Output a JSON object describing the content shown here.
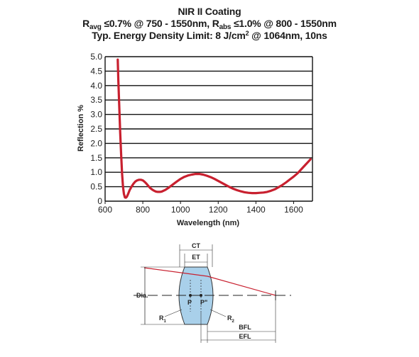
{
  "title": {
    "line1": "NIR II Coating",
    "line2": {
      "r1": "R",
      "r1_sub": "avg",
      "r1_text": " ≤0.7% @ 750 - 1550nm, ",
      "r2": "R",
      "r2_sub": "abs",
      "r2_text": " ≤1.0% @ 800 - 1550nm"
    },
    "line3": {
      "pre": "Typ. Energy Density Limit: 8 J/cm",
      "sup": "2",
      "post": " @ 1064nm, 10ns"
    }
  },
  "chart_data": {
    "type": "line",
    "xlabel": "Wavelength (nm)",
    "ylabel": "Reflection %",
    "xlim": [
      600,
      1700
    ],
    "ylim": [
      0,
      5.0
    ],
    "xticks": [
      600,
      800,
      1000,
      1200,
      1400,
      1600
    ],
    "yticks": [
      0,
      0.5,
      1.0,
      1.5,
      2.0,
      2.5,
      3.0,
      3.5,
      4.0,
      4.5,
      5.0
    ],
    "ytick_labels": [
      "0",
      "0.5",
      "1.0",
      "1.5",
      "2.0",
      "2.5",
      "3.0",
      "3.5",
      "4.0",
      "4.5",
      "5.0"
    ],
    "grid": "horizontal",
    "line_color": "#c8202f",
    "series": [
      {
        "x": [
          667,
          670,
          675,
          680,
          685,
          690,
          695,
          700,
          705,
          710,
          715,
          720,
          725,
          730,
          740,
          750,
          760,
          770,
          780,
          790,
          800,
          810,
          820,
          830,
          840,
          850,
          860,
          870,
          880,
          890,
          900,
          920,
          940,
          960,
          980,
          1000,
          1020,
          1040,
          1060,
          1080,
          1100,
          1120,
          1140,
          1160,
          1180,
          1200,
          1220,
          1240,
          1260,
          1280,
          1300,
          1320,
          1340,
          1360,
          1380,
          1400,
          1420,
          1440,
          1460,
          1480,
          1500,
          1520,
          1540,
          1560,
          1580,
          1600,
          1620,
          1640,
          1660,
          1680,
          1690
        ],
        "y": [
          4.9,
          4.2,
          3.3,
          2.4,
          1.6,
          0.95,
          0.5,
          0.25,
          0.13,
          0.12,
          0.15,
          0.22,
          0.3,
          0.38,
          0.5,
          0.6,
          0.68,
          0.72,
          0.74,
          0.74,
          0.72,
          0.67,
          0.6,
          0.52,
          0.45,
          0.4,
          0.36,
          0.33,
          0.32,
          0.32,
          0.33,
          0.39,
          0.48,
          0.58,
          0.68,
          0.77,
          0.84,
          0.89,
          0.92,
          0.94,
          0.94,
          0.92,
          0.88,
          0.83,
          0.77,
          0.7,
          0.63,
          0.56,
          0.49,
          0.43,
          0.38,
          0.34,
          0.31,
          0.29,
          0.28,
          0.28,
          0.29,
          0.3,
          0.32,
          0.36,
          0.41,
          0.48,
          0.56,
          0.65,
          0.75,
          0.85,
          0.96,
          1.1,
          1.24,
          1.38,
          1.45
        ]
      }
    ]
  },
  "diagram": {
    "labels": {
      "ct": "CT",
      "et": "ET",
      "dia": "Dia.",
      "p": "P",
      "p_prime": "P\"",
      "r1": "R",
      "r1_sub": "1",
      "r2": "R",
      "r2_sub": "2",
      "bfl": "BFL",
      "efl": "EFL"
    },
    "colors": {
      "lens_fill": "#a9d0ea",
      "ray": "#c8202f"
    }
  }
}
